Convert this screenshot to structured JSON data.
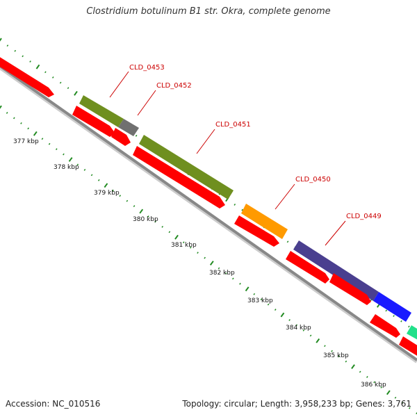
{
  "header": {
    "title": "Clostridium botulinum B1 str. Okra, complete genome"
  },
  "footer": {
    "accession": "Accession: NC_010516",
    "summary": "Topology: circular; Length: 3,958,233 bp; Genes: 3,761"
  },
  "colors": {
    "red": "#ff0000",
    "olive": "#6f8f1f",
    "grey": "#707070",
    "orange": "#ff9a00",
    "purple": "#4a3f8f",
    "blue": "#1a1aff",
    "teal": "#22e08a",
    "tick": "#228b22",
    "backbone": "#888888",
    "label": "#cc0000"
  },
  "scale_labels": [
    "377 kbp",
    "378 kbp",
    "379 kbp",
    "380 kbp",
    "381 kbp",
    "382 kbp",
    "383 kbp",
    "384 kbp",
    "385 kbp",
    "386 kbp"
  ],
  "gene_labels": [
    "CLD_0453",
    "CLD_0452",
    "CLD_0451",
    "CLD_0450",
    "CLD_0449"
  ]
}
